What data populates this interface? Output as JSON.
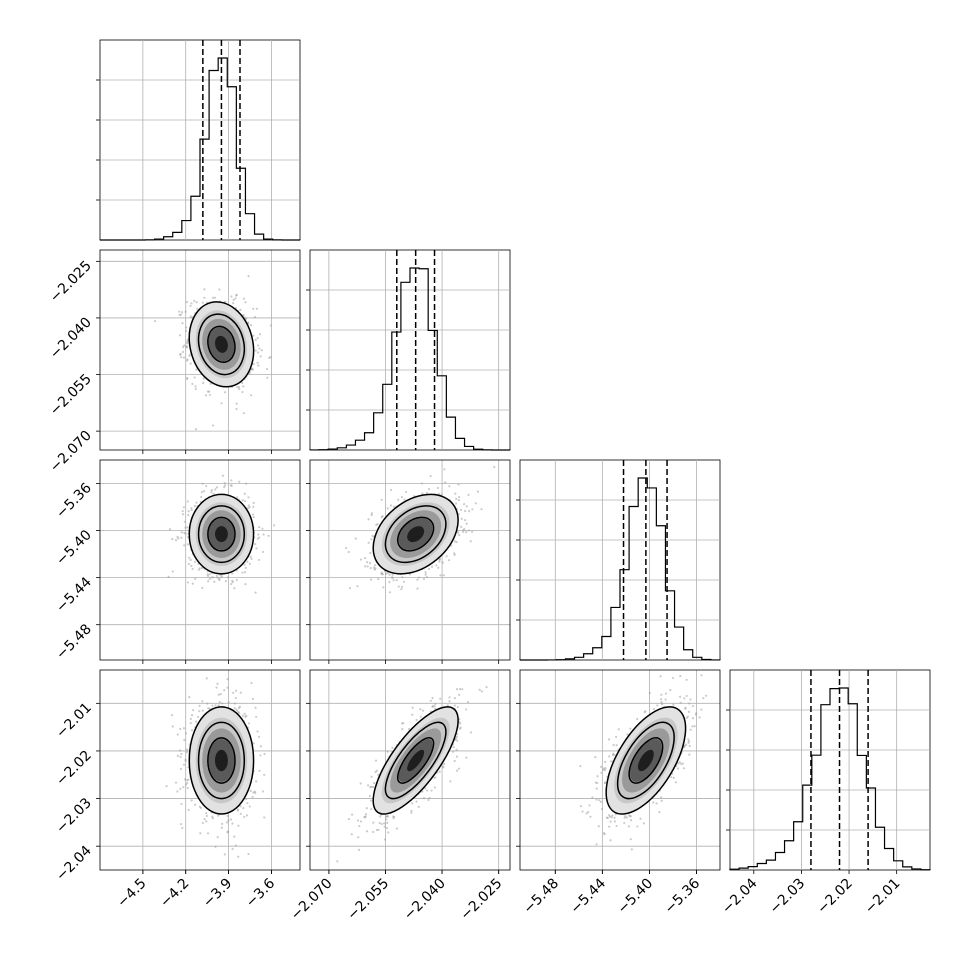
{
  "chart_data": {
    "type": "corner",
    "params": [
      {
        "id": "p1",
        "range": [
          -4.8,
          -3.4
        ],
        "ticks": [
          -4.5,
          -4.2,
          -3.9,
          -3.6
        ],
        "tick_labels": [
          "−4.5",
          "−4.2",
          "−3.9",
          "−3.6"
        ],
        "center": -3.95,
        "sigma": 0.1,
        "quantiles": [
          -4.08,
          -3.95,
          -3.82
        ]
      },
      {
        "id": "p2",
        "range": [
          -2.075,
          -2.022
        ],
        "ticks": [
          -2.07,
          -2.055,
          -2.04,
          -2.025
        ],
        "tick_labels": [
          "−2.070",
          "−2.055",
          "−2.040",
          "−2.025"
        ],
        "center": -2.047,
        "sigma": 0.005,
        "quantiles": [
          -2.052,
          -2.047,
          -2.042
        ]
      },
      {
        "id": "p3",
        "range": [
          -5.51,
          -5.34
        ],
        "ticks": [
          -5.48,
          -5.44,
          -5.4,
          -5.36
        ],
        "tick_labels": [
          "−5.48",
          "−5.44",
          "−5.40",
          "−5.36"
        ],
        "center": -5.403,
        "sigma": 0.015,
        "quantiles": [
          -5.422,
          -5.403,
          -5.385
        ]
      },
      {
        "id": "p4",
        "range": [
          -2.045,
          -2.003
        ],
        "ticks": [
          -2.04,
          -2.03,
          -2.02,
          -2.01
        ],
        "tick_labels": [
          "−2.04",
          "−2.03",
          "−2.02",
          "−2.01"
        ],
        "center": -2.022,
        "sigma": 0.005,
        "quantiles": [
          -2.028,
          -2.022,
          -2.016
        ]
      }
    ],
    "correlations": [
      {
        "x": 0,
        "y": 1,
        "rho": -0.15
      },
      {
        "x": 0,
        "y": 2,
        "rho": 0.0
      },
      {
        "x": 1,
        "y": 2,
        "rho": 0.35
      },
      {
        "x": 0,
        "y": 3,
        "rho": 0.0
      },
      {
        "x": 1,
        "y": 3,
        "rho": 0.75
      },
      {
        "x": 2,
        "y": 3,
        "rho": 0.6
      }
    ],
    "grid": true,
    "quantile_lines": "dashed",
    "contours": "1-2 sigma levels with density shading and scatter points"
  }
}
